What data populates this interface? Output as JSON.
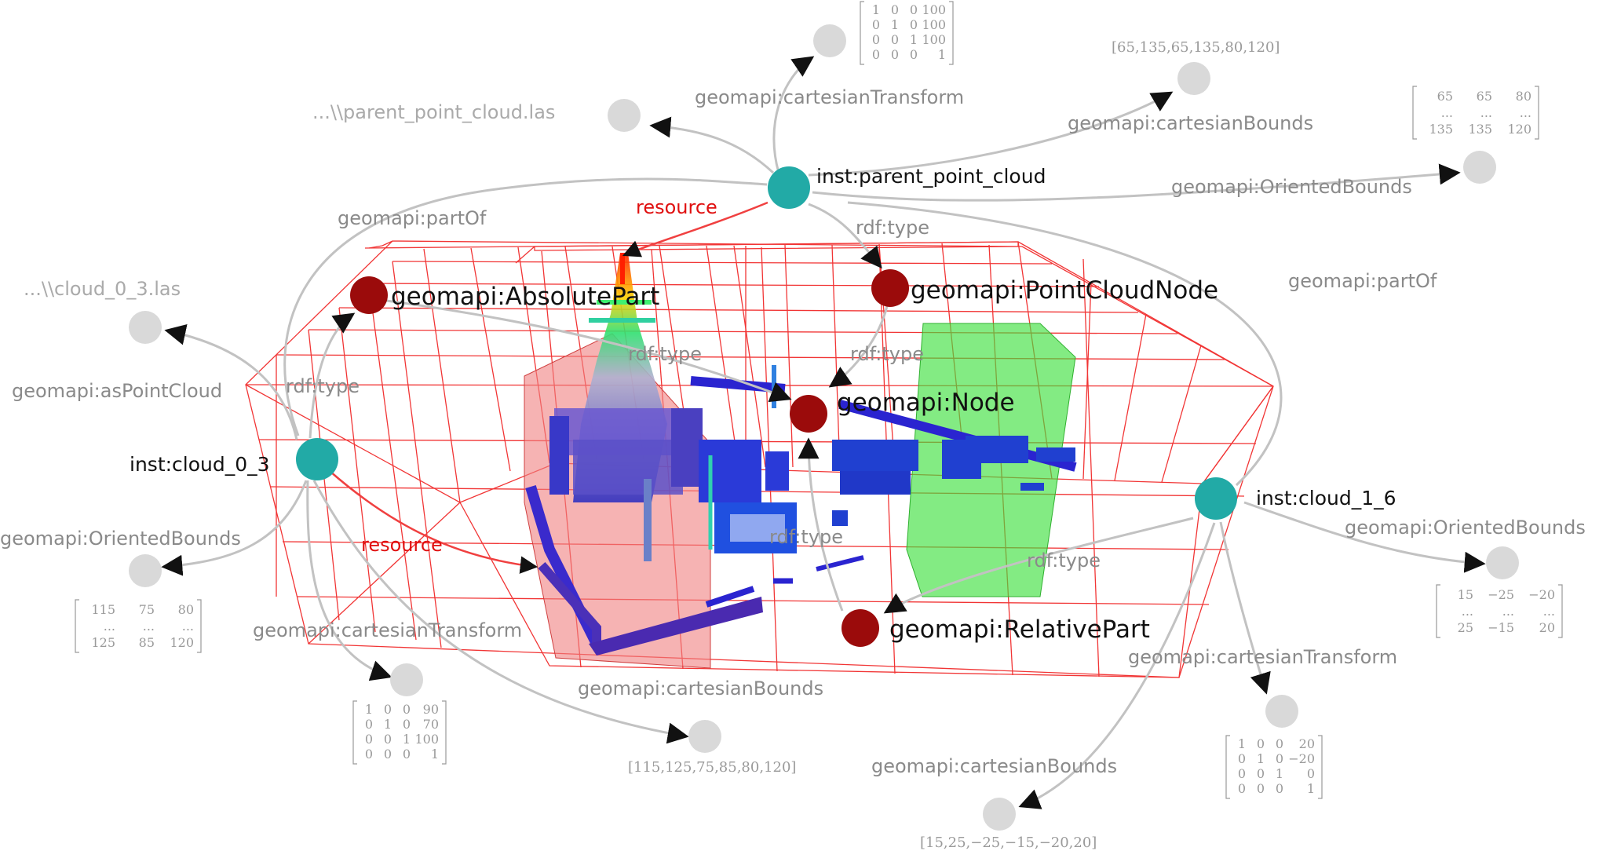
{
  "colors": {
    "instance": "#22aaa6",
    "class": "#9b0b0b",
    "literal": "#d9d9d9",
    "edge": "#c2c2c2",
    "resource_edge": "#f04040",
    "grid": "#f02020",
    "absolute_part_box": "#f08080",
    "relative_part_box": "#4ee84e"
  },
  "instances": {
    "parent": "inst:parent_point_cloud",
    "cloud_0_3": "inst:cloud_0_3",
    "cloud_1_6": "inst:cloud_1_6"
  },
  "classes": {
    "absolute_part": "geomapi:AbsolutePart",
    "point_cloud_node": "geomapi:PointCloudNode",
    "node": "geomapi:Node",
    "relative_part": "geomapi:RelativePart"
  },
  "literals": {
    "parent_path": "...\\\\parent_point_cloud.las",
    "cloud_0_3_path": "...\\\\cloud_0_3.las",
    "parent_bounds": "[65,135,65,135,80,120]",
    "cloud_0_3_bounds": "[115,125,75,85,80,120]",
    "cloud_1_6_bounds": "[15,25,−25,−15,−20,20]"
  },
  "matrices": {
    "parent_transform": [
      [
        "1",
        "0",
        "0",
        "100"
      ],
      [
        "0",
        "1",
        "0",
        "100"
      ],
      [
        "0",
        "0",
        "1",
        "100"
      ],
      [
        "0",
        "0",
        "0",
        "1"
      ]
    ],
    "parent_oriented": [
      [
        "65",
        "65",
        "80"
      ],
      [
        "...",
        "...",
        "..."
      ],
      [
        "135",
        "135",
        "120"
      ]
    ],
    "cloud_0_3_oriented": [
      [
        "115",
        "75",
        "80"
      ],
      [
        "...",
        "...",
        "..."
      ],
      [
        "125",
        "85",
        "120"
      ]
    ],
    "cloud_0_3_transform": [
      [
        "1",
        "0",
        "0",
        "90"
      ],
      [
        "0",
        "1",
        "0",
        "70"
      ],
      [
        "0",
        "0",
        "1",
        "100"
      ],
      [
        "0",
        "0",
        "0",
        "1"
      ]
    ],
    "cloud_1_6_oriented": [
      [
        "15",
        "−25",
        "−20"
      ],
      [
        "...",
        "...",
        "..."
      ],
      [
        "25",
        "−15",
        "20"
      ]
    ],
    "cloud_1_6_transform": [
      [
        "1",
        "0",
        "0",
        "20"
      ],
      [
        "0",
        "1",
        "0",
        "−20"
      ],
      [
        "0",
        "0",
        "1",
        "0"
      ],
      [
        "0",
        "0",
        "0",
        "1"
      ]
    ]
  },
  "edge_labels": {
    "cartesian_transform": "geomapi:cartesianTransform",
    "cartesian_bounds": "geomapi:cartesianBounds",
    "oriented_bounds": "geomapi:OrientedBounds",
    "part_of": "geomapi:partOf",
    "as_point_cloud": "geomapi:asPointCloud",
    "rdf_type": "rdf:type",
    "resource": "resource"
  }
}
